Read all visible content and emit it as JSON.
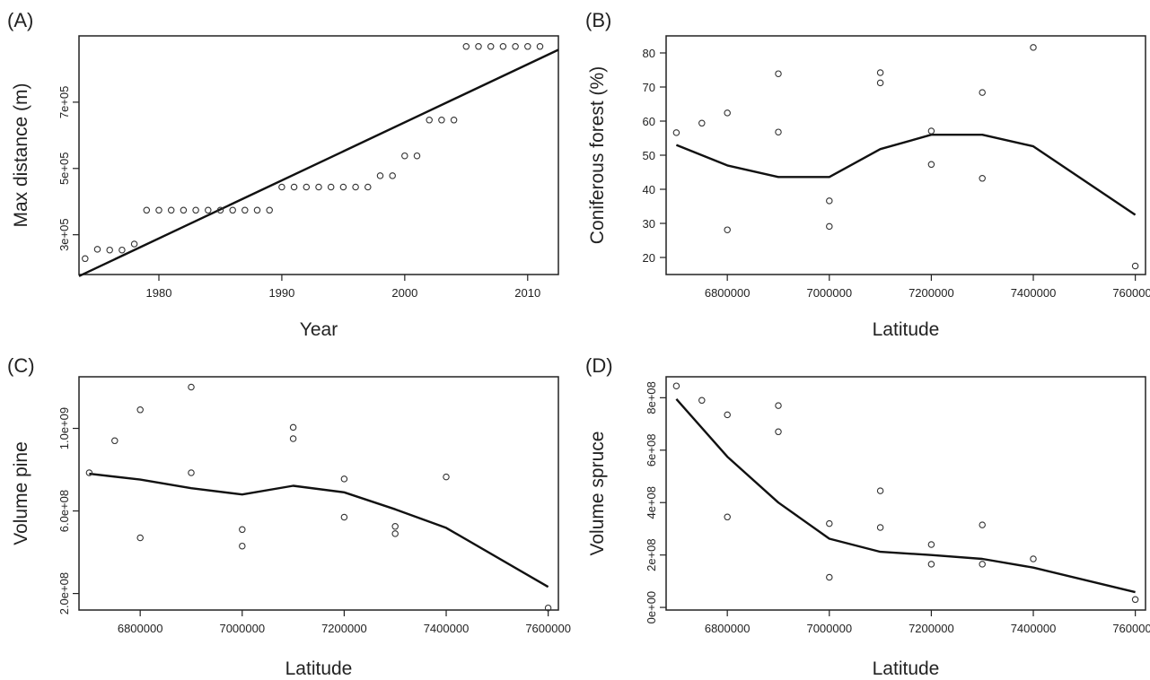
{
  "chart_data": [
    {
      "panel": "(A)",
      "type": "scatter",
      "xlabel": "Year",
      "ylabel": "Max distance (m)",
      "xlim": [
        1973.5,
        2012.5
      ],
      "ylim": [
        180000,
        900000
      ],
      "xticks": [
        1980,
        1990,
        2000,
        2010
      ],
      "xtick_labels": [
        "1980",
        "1990",
        "2000",
        "2010"
      ],
      "yticks": [
        300000,
        500000,
        700000
      ],
      "ytick_labels": [
        "3e+05",
        "5e+05",
        "7e+05"
      ],
      "points": [
        [
          1974,
          228000
        ],
        [
          1975,
          256000
        ],
        [
          1976,
          254000
        ],
        [
          1977,
          254000
        ],
        [
          1978,
          272000
        ],
        [
          1979,
          374000
        ],
        [
          1980,
          374000
        ],
        [
          1981,
          374000
        ],
        [
          1982,
          374000
        ],
        [
          1983,
          374000
        ],
        [
          1984,
          374000
        ],
        [
          1985,
          374000
        ],
        [
          1986,
          374000
        ],
        [
          1987,
          374000
        ],
        [
          1988,
          374000
        ],
        [
          1989,
          374000
        ],
        [
          1990,
          444000
        ],
        [
          1991,
          444000
        ],
        [
          1992,
          444000
        ],
        [
          1993,
          444000
        ],
        [
          1994,
          444000
        ],
        [
          1995,
          444000
        ],
        [
          1996,
          444000
        ],
        [
          1997,
          444000
        ],
        [
          1998,
          478000
        ],
        [
          1999,
          478000
        ],
        [
          2000,
          538000
        ],
        [
          2001,
          538000
        ],
        [
          2002,
          646000
        ],
        [
          2003,
          646000
        ],
        [
          2004,
          646000
        ],
        [
          2005,
          868000
        ],
        [
          2006,
          868000
        ],
        [
          2007,
          868000
        ],
        [
          2008,
          868000
        ],
        [
          2009,
          868000
        ],
        [
          2010,
          868000
        ],
        [
          2011,
          868000
        ]
      ],
      "trend": [
        [
          1973.5,
          175000
        ],
        [
          2012.5,
          858000
        ]
      ],
      "grid": false
    },
    {
      "panel": "(B)",
      "type": "scatter",
      "xlabel": "Latitude",
      "ylabel": "Coniferous forest (%)",
      "xlim": [
        6680000,
        7620000
      ],
      "ylim": [
        15,
        85
      ],
      "xticks": [
        6800000,
        7000000,
        7200000,
        7400000,
        7600000
      ],
      "xtick_labels": [
        "6800000",
        "7000000",
        "7200000",
        "7400000",
        "7600000"
      ],
      "yticks": [
        20,
        30,
        40,
        50,
        60,
        70,
        80
      ],
      "ytick_labels": [
        "20",
        "30",
        "40",
        "50",
        "60",
        "70",
        "80"
      ],
      "points": [
        [
          6700000,
          56.6
        ],
        [
          6750000,
          59.4
        ],
        [
          6800000,
          62.4
        ],
        [
          6800000,
          28.1
        ],
        [
          6900000,
          73.9
        ],
        [
          6900000,
          56.8
        ],
        [
          7000000,
          36.6
        ],
        [
          7000000,
          29.1
        ],
        [
          7100000,
          74.2
        ],
        [
          7100000,
          71.2
        ],
        [
          7200000,
          57.1
        ],
        [
          7200000,
          47.3
        ],
        [
          7300000,
          68.4
        ],
        [
          7300000,
          43.2
        ],
        [
          7400000,
          81.6
        ],
        [
          7600000,
          17.5
        ]
      ],
      "trend": [
        [
          6700000,
          53
        ],
        [
          6800000,
          47
        ],
        [
          6900000,
          43.6
        ],
        [
          7000000,
          43.6
        ],
        [
          7100000,
          51.8
        ],
        [
          7200000,
          56
        ],
        [
          7300000,
          56
        ],
        [
          7400000,
          52.6
        ],
        [
          7600000,
          32.5
        ]
      ],
      "grid": false
    },
    {
      "panel": "(C)",
      "type": "scatter",
      "xlabel": "Latitude",
      "ylabel": "Volume pine",
      "xlim": [
        6680000,
        7620000
      ],
      "ylim": [
        120000000,
        1250000000
      ],
      "xticks": [
        6800000,
        7000000,
        7200000,
        7400000,
        7600000
      ],
      "xtick_labels": [
        "6800000",
        "7000000",
        "7200000",
        "7400000",
        "7600000"
      ],
      "yticks": [
        200000000,
        600000000,
        1000000000
      ],
      "ytick_labels": [
        "2.0e+08",
        "6.0e+08",
        "1.0e+09"
      ],
      "points": [
        [
          6700000,
          785000000
        ],
        [
          6750000,
          940000000
        ],
        [
          6800000,
          1090000000
        ],
        [
          6800000,
          470000000
        ],
        [
          6900000,
          1200000000
        ],
        [
          6900000,
          785000000
        ],
        [
          7000000,
          510000000
        ],
        [
          7000000,
          430000000
        ],
        [
          7100000,
          1005000000
        ],
        [
          7100000,
          950000000
        ],
        [
          7200000,
          755000000
        ],
        [
          7200000,
          570000000
        ],
        [
          7300000,
          525000000
        ],
        [
          7300000,
          490000000
        ],
        [
          7400000,
          765000000
        ],
        [
          7600000,
          130000000
        ]
      ],
      "trend": [
        [
          6700000,
          780000000
        ],
        [
          6800000,
          752000000
        ],
        [
          6900000,
          710000000
        ],
        [
          7000000,
          680000000
        ],
        [
          7100000,
          722000000
        ],
        [
          7200000,
          690000000
        ],
        [
          7300000,
          608000000
        ],
        [
          7400000,
          518000000
        ],
        [
          7600000,
          232000000
        ]
      ],
      "grid": false
    },
    {
      "panel": "(D)",
      "type": "scatter",
      "xlabel": "Latitude",
      "ylabel": "Volume spruce",
      "xlim": [
        6680000,
        7620000
      ],
      "ylim": [
        -10000000,
        880000000
      ],
      "xticks": [
        6800000,
        7000000,
        7200000,
        7400000,
        7600000
      ],
      "xtick_labels": [
        "6800000",
        "7000000",
        "7200000",
        "7400000",
        "7600000"
      ],
      "yticks": [
        0,
        200000000,
        400000000,
        600000000,
        800000000
      ],
      "ytick_labels": [
        "0e+00",
        "2e+08",
        "4e+08",
        "6e+08",
        "8e+08"
      ],
      "points": [
        [
          6700000,
          845000000
        ],
        [
          6750000,
          790000000
        ],
        [
          6800000,
          735000000
        ],
        [
          6800000,
          345000000
        ],
        [
          6900000,
          770000000
        ],
        [
          6900000,
          670000000
        ],
        [
          7000000,
          320000000
        ],
        [
          7000000,
          115000000
        ],
        [
          7100000,
          445000000
        ],
        [
          7100000,
          305000000
        ],
        [
          7200000,
          240000000
        ],
        [
          7200000,
          165000000
        ],
        [
          7300000,
          315000000
        ],
        [
          7300000,
          165000000
        ],
        [
          7400000,
          185000000
        ],
        [
          7600000,
          30000000
        ]
      ],
      "trend": [
        [
          6700000,
          795000000
        ],
        [
          6800000,
          575000000
        ],
        [
          6900000,
          400000000
        ],
        [
          7000000,
          262000000
        ],
        [
          7100000,
          212000000
        ],
        [
          7200000,
          200000000
        ],
        [
          7300000,
          185000000
        ],
        [
          7400000,
          152000000
        ],
        [
          7600000,
          58000000
        ]
      ],
      "grid": false
    }
  ]
}
